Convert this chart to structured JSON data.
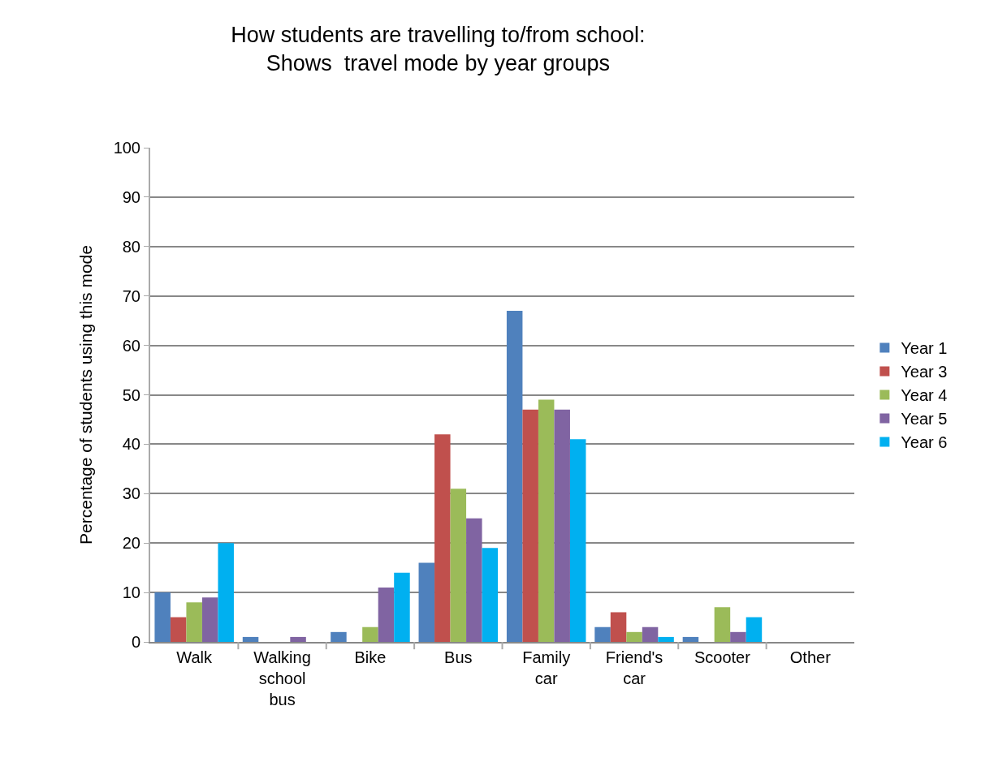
{
  "chart_data": {
    "type": "bar",
    "title": "How students are travelling to/from school:\nShows  travel mode by year groups",
    "ylabel": "Percentage of students using this mode",
    "categories": [
      "Walk",
      "Walking school bus",
      "Bike",
      "Bus",
      "Family car",
      "Friend's car",
      "Scooter",
      "Other"
    ],
    "series": [
      {
        "name": "Year 1",
        "color": "#4f81bd",
        "values": [
          10,
          1,
          2,
          16,
          67,
          3,
          1,
          0
        ]
      },
      {
        "name": "Year 3",
        "color": "#c0504d",
        "values": [
          5,
          0,
          0,
          42,
          47,
          6,
          0,
          0
        ]
      },
      {
        "name": "Year 4",
        "color": "#9bbb59",
        "values": [
          8,
          0,
          3,
          31,
          49,
          2,
          7,
          0
        ]
      },
      {
        "name": "Year 5",
        "color": "#8064a2",
        "values": [
          9,
          1,
          11,
          25,
          47,
          3,
          2,
          0
        ]
      },
      {
        "name": "Year 6",
        "color": "#00b0f0",
        "values": [
          20,
          0,
          14,
          19,
          41,
          1,
          5,
          0
        ]
      }
    ],
    "ylim": [
      0,
      100
    ],
    "yticks": [
      0,
      10,
      20,
      30,
      40,
      50,
      60,
      70,
      80,
      90,
      100
    ],
    "grid": "y",
    "legend": "right"
  }
}
